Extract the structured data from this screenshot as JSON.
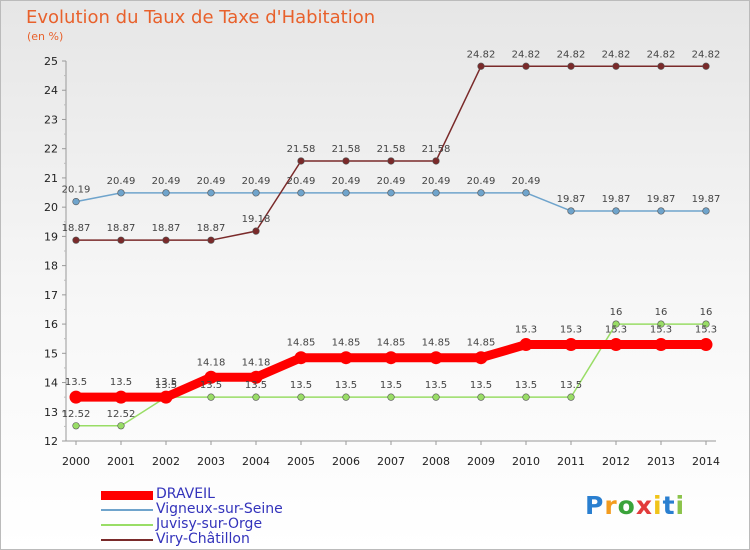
{
  "colors": {
    "title": "#e8612c",
    "text": "#222222",
    "legend_text": "#3333bb"
  },
  "chart_data": {
    "type": "line",
    "title": "Evolution du Taux de Taxe d'Habitation",
    "ylabel": "(en %)",
    "xlabel": "",
    "x": [
      "2000",
      "2001",
      "2002",
      "2003",
      "2004",
      "2005",
      "2006",
      "2007",
      "2008",
      "2009",
      "2010",
      "2011",
      "2012",
      "2013",
      "2014"
    ],
    "ylim": [
      12,
      25
    ],
    "yticks": [
      "12",
      "13",
      "14",
      "15",
      "16",
      "17",
      "18",
      "19",
      "20",
      "21",
      "22",
      "23",
      "24",
      "25"
    ],
    "grid": false,
    "legend_position": "bottom-left",
    "series": [
      {
        "name": "DRAVEIL",
        "color": "#ff0000",
        "emphasis": true,
        "values": [
          13.5,
          13.5,
          13.5,
          14.18,
          14.18,
          14.85,
          14.85,
          14.85,
          14.85,
          14.85,
          15.3,
          15.3,
          15.3,
          15.3,
          15.3
        ],
        "labels": [
          "13.5",
          "13.5",
          "13.5",
          "14.18",
          "14.18",
          "14.85",
          "14.85",
          "14.85",
          "14.85",
          "14.85",
          "15.3",
          "15.3",
          "15.3",
          "15.3",
          "15.3"
        ]
      },
      {
        "name": "Vigneux-sur-Seine",
        "color": "#6fa4cc",
        "emphasis": false,
        "values": [
          20.19,
          20.49,
          20.49,
          20.49,
          20.49,
          20.49,
          20.49,
          20.49,
          20.49,
          20.49,
          20.49,
          19.87,
          19.87,
          19.87,
          19.87
        ],
        "labels": [
          "20.19",
          "20.49",
          "20.49",
          "20.49",
          "20.49",
          "20.49",
          "20.49",
          "20.49",
          "20.49",
          "20.49",
          "20.49",
          "19.87",
          "19.87",
          "19.87",
          "19.87"
        ]
      },
      {
        "name": "Juvisy-sur-Orge",
        "color": "#99dd66",
        "emphasis": false,
        "values": [
          12.52,
          12.52,
          13.5,
          13.5,
          13.5,
          13.5,
          13.5,
          13.5,
          13.5,
          13.5,
          13.5,
          13.5,
          16,
          16,
          16
        ],
        "labels": [
          "12.52",
          "12.52",
          "13.5",
          "13.5",
          "13.5",
          "13.5",
          "13.5",
          "13.5",
          "13.5",
          "13.5",
          "13.5",
          "13.5",
          "16",
          "16",
          "16"
        ]
      },
      {
        "name": "Viry-Châtillon",
        "color": "#7a2a2a",
        "emphasis": false,
        "values": [
          18.87,
          18.87,
          18.87,
          18.87,
          19.18,
          21.58,
          21.58,
          21.58,
          21.58,
          24.82,
          24.82,
          24.82,
          24.82,
          24.82,
          24.82
        ],
        "labels": [
          "18.87",
          "18.87",
          "18.87",
          "18.87",
          "19.18",
          "21.58",
          "21.58",
          "21.58",
          "21.58",
          "24.82",
          "24.82",
          "24.82",
          "24.82",
          "24.82",
          "24.82"
        ]
      }
    ]
  },
  "brand": {
    "letters": [
      "P",
      "r",
      "o",
      "x",
      "i",
      "t",
      "i"
    ],
    "colors": [
      "#2a7fd0",
      "#f39c1f",
      "#3aa33a",
      "#e23b3b",
      "#f0c419",
      "#2a7fd0",
      "#8bc34a"
    ]
  }
}
